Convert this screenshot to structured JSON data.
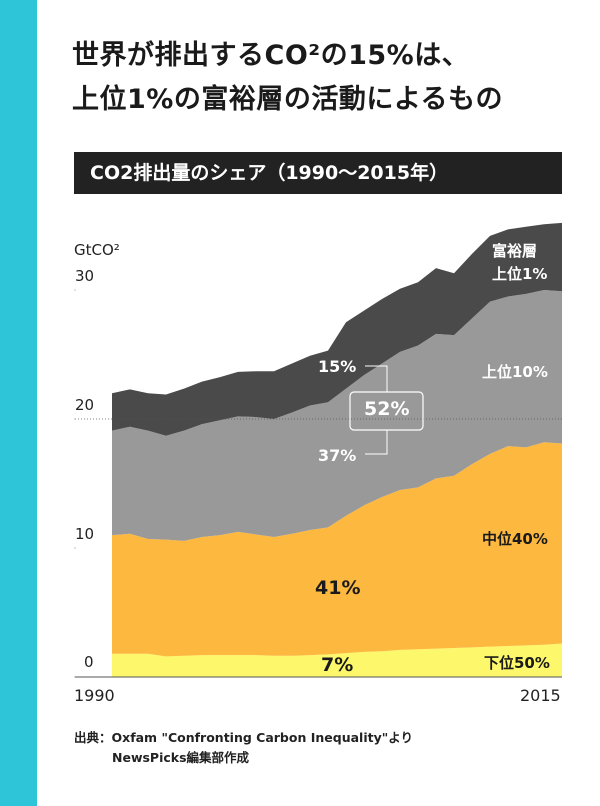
{
  "title": {
    "line1": "世界が排出するCO²の15%は、",
    "line2": "上位1%の富裕層の活動によるもの"
  },
  "subtitle": "CO2排出量のシェア（1990〜2015年）",
  "colors": {
    "accent": "#2fc5d9",
    "top1": "#4a4a4a",
    "top10": "#999999",
    "middle40": "#fdb83f",
    "bottom50": "#fdf76b"
  },
  "chart_data": {
    "type": "area",
    "stacked": true,
    "title": "CO2排出量のシェア（1990〜2015年）",
    "ylabel": "GtCO2",
    "ylabel_text": "GtCO²",
    "ylim": [
      0,
      35.5
    ],
    "yticks": [
      "0",
      "10",
      "20",
      "30"
    ],
    "ytick_values": [
      0,
      10,
      20,
      30
    ],
    "xlabels": [
      "1990",
      "2015"
    ],
    "x": [
      1990,
      1991,
      1992,
      1993,
      1994,
      1995,
      1996,
      1997,
      1998,
      1999,
      2000,
      2001,
      2002,
      2003,
      2004,
      2005,
      2006,
      2007,
      2008,
      2009,
      2010,
      2011,
      2012,
      2013,
      2014,
      2015
    ],
    "gridline_value": 20,
    "series": [
      {
        "name": "下位50%",
        "color": "#fdf76b",
        "values": [
          1.8,
          1.8,
          1.8,
          1.6,
          1.65,
          1.7,
          1.7,
          1.7,
          1.7,
          1.65,
          1.65,
          1.7,
          1.75,
          1.85,
          1.95,
          2.0,
          2.1,
          2.15,
          2.2,
          2.25,
          2.3,
          2.35,
          2.4,
          2.45,
          2.5,
          2.6
        ]
      },
      {
        "name": "中位40%",
        "color": "#fdb83f",
        "values": [
          9.2,
          9.3,
          8.9,
          9.05,
          8.9,
          9.15,
          9.3,
          9.55,
          9.35,
          9.2,
          9.45,
          9.7,
          9.85,
          10.65,
          11.35,
          11.95,
          12.4,
          12.55,
          13.2,
          13.35,
          14.2,
          14.95,
          15.5,
          15.35,
          15.7,
          15.5
        ]
      },
      {
        "name": "上位10%",
        "color": "#999999",
        "values": [
          8.1,
          8.3,
          8.4,
          8.05,
          8.55,
          8.75,
          8.9,
          8.95,
          9.1,
          9.15,
          9.4,
          9.65,
          9.7,
          9.85,
          10.1,
          10.35,
          10.7,
          11.0,
          11.2,
          10.9,
          11.3,
          11.8,
          11.6,
          11.9,
          11.8,
          11.8
        ]
      },
      {
        "name": "富裕層 上位1%",
        "color": "#4a4a4a",
        "values": [
          2.9,
          2.9,
          2.9,
          3.2,
          3.25,
          3.3,
          3.35,
          3.45,
          3.55,
          3.7,
          3.8,
          3.85,
          4.0,
          5.15,
          5.0,
          5.0,
          4.9,
          4.9,
          5.1,
          4.8,
          5.0,
          5.1,
          5.2,
          5.2,
          5.1,
          5.3
        ]
      }
    ],
    "series_labels": {
      "top1_line1": "富裕層",
      "top1_line2": "上位1%",
      "top10": "上位10%",
      "middle40": "中位40%",
      "bottom50": "下位50%"
    },
    "annotations": {
      "top1_share": "15%",
      "top10_share": "37%",
      "top10_total": "52%",
      "middle_share": "41%",
      "bottom_share": "7%"
    }
  },
  "source": {
    "line1": "出典：Oxfam \"Confronting Carbon Inequality\"より",
    "line2": "NewsPicks編集部作成"
  }
}
